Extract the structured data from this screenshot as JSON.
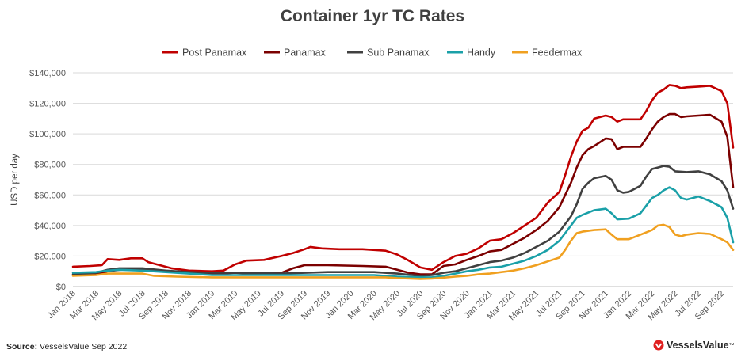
{
  "source": {
    "prefix": "Source:",
    "text": "VesselsValue Sep 2022"
  },
  "brand": {
    "name": "VesselsValue",
    "tm": "™",
    "logo_icon": "vesselsvalue-logo-icon",
    "color": "#e02020"
  },
  "chart_data": {
    "type": "line",
    "title": "Container 1yr TC Rates",
    "xlabel": "",
    "ylabel": "USD per day",
    "ylim": [
      0,
      140000
    ],
    "y_ticks": [
      0,
      20000,
      40000,
      60000,
      80000,
      100000,
      120000,
      140000
    ],
    "y_tick_labels": [
      "$0",
      "$20,000",
      "$40,000",
      "$60,000",
      "$80,000",
      "$100,000",
      "$120,000",
      "$140,000"
    ],
    "x_tick_labels": [
      "Jan 2018",
      "Mar 2018",
      "May 2018",
      "Jul 2018",
      "Sep 2018",
      "Nov 2018",
      "Jan 2019",
      "Mar 2019",
      "May 2019",
      "Jul 2019",
      "Sep 2019",
      "Nov 2019",
      "Jan 2020",
      "Mar 2020",
      "May 2020",
      "Jul 2020",
      "Sep 2020",
      "Nov 2020",
      "Jan 2021",
      "Mar 2021",
      "May 2021",
      "Jul 2021",
      "Sep 2021",
      "Nov 2021",
      "Jan 2022",
      "Mar 2022",
      "May 2022",
      "Jul 2022",
      "Sep 2022"
    ],
    "grid": true,
    "legend_position": "top",
    "x_range_months": [
      0,
      57
    ],
    "series": [
      {
        "name": "Post Panamax",
        "color": "#c00000",
        "points": [
          [
            0,
            13000
          ],
          [
            1.5,
            13500
          ],
          [
            2.5,
            14000
          ],
          [
            3,
            18000
          ],
          [
            4,
            17500
          ],
          [
            5,
            18500
          ],
          [
            6,
            18500
          ],
          [
            6.5,
            16000
          ],
          [
            7.5,
            14000
          ],
          [
            8.5,
            12000
          ],
          [
            10,
            10500
          ],
          [
            12,
            10000
          ],
          [
            13,
            10500
          ],
          [
            14,
            14500
          ],
          [
            15,
            17000
          ],
          [
            16.5,
            17500
          ],
          [
            18,
            20000
          ],
          [
            19,
            22000
          ],
          [
            20,
            24500
          ],
          [
            20.5,
            26000
          ],
          [
            21.5,
            25000
          ],
          [
            23,
            24500
          ],
          [
            25,
            24500
          ],
          [
            27,
            23500
          ],
          [
            28,
            21000
          ],
          [
            29,
            17000
          ],
          [
            30,
            12500
          ],
          [
            31,
            11000
          ],
          [
            32,
            16000
          ],
          [
            33,
            20000
          ],
          [
            34,
            21500
          ],
          [
            35,
            25000
          ],
          [
            36,
            30000
          ],
          [
            37,
            31000
          ],
          [
            38,
            35000
          ],
          [
            39,
            40000
          ],
          [
            40,
            45000
          ],
          [
            41,
            55000
          ],
          [
            42,
            62000
          ],
          [
            42.5,
            73000
          ],
          [
            43,
            85000
          ],
          [
            43.5,
            95000
          ],
          [
            44,
            102000
          ],
          [
            44.5,
            104000
          ],
          [
            45,
            110000
          ],
          [
            46,
            112000
          ],
          [
            46.5,
            111000
          ],
          [
            47,
            108000
          ],
          [
            47.5,
            109500
          ],
          [
            49,
            109500
          ],
          [
            49.5,
            115000
          ],
          [
            50,
            122000
          ],
          [
            50.5,
            127000
          ],
          [
            51,
            129000
          ],
          [
            51.5,
            132000
          ],
          [
            52,
            131500
          ],
          [
            52.5,
            130000
          ],
          [
            53,
            130500
          ],
          [
            54,
            131000
          ],
          [
            55,
            131500
          ],
          [
            56,
            128000
          ],
          [
            56.5,
            120000
          ],
          [
            57,
            91000
          ]
        ]
      },
      {
        "name": "Panamax",
        "color": "#7b0000",
        "points": [
          [
            0,
            7500
          ],
          [
            2,
            8000
          ],
          [
            3,
            10000
          ],
          [
            4,
            11000
          ],
          [
            6,
            11500
          ],
          [
            7,
            10500
          ],
          [
            9,
            9500
          ],
          [
            10,
            9000
          ],
          [
            12,
            8500
          ],
          [
            13,
            8500
          ],
          [
            14,
            9000
          ],
          [
            15,
            8500
          ],
          [
            18,
            9000
          ],
          [
            19,
            12000
          ],
          [
            20,
            14000
          ],
          [
            22,
            14000
          ],
          [
            25,
            13500
          ],
          [
            27,
            13000
          ],
          [
            28,
            11000
          ],
          [
            29,
            9000
          ],
          [
            30,
            8000
          ],
          [
            31,
            8000
          ],
          [
            32,
            13500
          ],
          [
            33,
            14500
          ],
          [
            34,
            17500
          ],
          [
            35,
            20000
          ],
          [
            36,
            23000
          ],
          [
            37,
            24000
          ],
          [
            38,
            28000
          ],
          [
            39,
            32000
          ],
          [
            40,
            37000
          ],
          [
            41,
            43000
          ],
          [
            42,
            52000
          ],
          [
            42.5,
            60000
          ],
          [
            43,
            68000
          ],
          [
            43.5,
            78000
          ],
          [
            44,
            86000
          ],
          [
            44.5,
            90000
          ],
          [
            45,
            92000
          ],
          [
            46,
            97000
          ],
          [
            46.5,
            96500
          ],
          [
            47,
            90000
          ],
          [
            47.5,
            91500
          ],
          [
            49,
            91500
          ],
          [
            49.5,
            97000
          ],
          [
            50,
            103000
          ],
          [
            50.5,
            108000
          ],
          [
            51,
            111000
          ],
          [
            51.5,
            113000
          ],
          [
            52,
            113000
          ],
          [
            52.5,
            111000
          ],
          [
            53,
            111500
          ],
          [
            54,
            112000
          ],
          [
            55,
            112500
          ],
          [
            56,
            108000
          ],
          [
            56.5,
            98000
          ],
          [
            57,
            65000
          ]
        ]
      },
      {
        "name": "Sub Panamax",
        "color": "#404040",
        "points": [
          [
            0,
            8000
          ],
          [
            2,
            9000
          ],
          [
            3,
            11000
          ],
          [
            4,
            12000
          ],
          [
            6,
            12000
          ],
          [
            8,
            10500
          ],
          [
            10,
            9500
          ],
          [
            12,
            9000
          ],
          [
            14,
            9000
          ],
          [
            18,
            8500
          ],
          [
            22,
            9500
          ],
          [
            26,
            9500
          ],
          [
            28,
            8500
          ],
          [
            30,
            7000
          ],
          [
            31,
            7500
          ],
          [
            32,
            9000
          ],
          [
            33,
            10000
          ],
          [
            34,
            12000
          ],
          [
            35,
            14000
          ],
          [
            36,
            16000
          ],
          [
            37,
            17000
          ],
          [
            38,
            19000
          ],
          [
            39,
            22000
          ],
          [
            40,
            26000
          ],
          [
            41,
            30000
          ],
          [
            42,
            36000
          ],
          [
            43,
            46000
          ],
          [
            43.5,
            54000
          ],
          [
            44,
            64000
          ],
          [
            44.5,
            68000
          ],
          [
            45,
            71000
          ],
          [
            46,
            72500
          ],
          [
            46.5,
            70000
          ],
          [
            47,
            63000
          ],
          [
            47.5,
            61500
          ],
          [
            48,
            62000
          ],
          [
            49,
            66000
          ],
          [
            49.5,
            72000
          ],
          [
            50,
            77000
          ],
          [
            50.5,
            78000
          ],
          [
            51,
            79000
          ],
          [
            51.5,
            78500
          ],
          [
            52,
            75500
          ],
          [
            53,
            75000
          ],
          [
            54,
            75500
          ],
          [
            55,
            73500
          ],
          [
            56,
            69000
          ],
          [
            56.5,
            63000
          ],
          [
            57,
            51000
          ]
        ]
      },
      {
        "name": "Handy",
        "color": "#1aa0a8",
        "points": [
          [
            0,
            9000
          ],
          [
            2,
            9500
          ],
          [
            3,
            10500
          ],
          [
            4,
            11000
          ],
          [
            6,
            10500
          ],
          [
            8,
            9500
          ],
          [
            10,
            8500
          ],
          [
            12,
            7500
          ],
          [
            14,
            7500
          ],
          [
            18,
            7500
          ],
          [
            22,
            7500
          ],
          [
            26,
            7500
          ],
          [
            28,
            6500
          ],
          [
            30,
            6000
          ],
          [
            31,
            6000
          ],
          [
            32,
            7000
          ],
          [
            33,
            8500
          ],
          [
            34,
            10000
          ],
          [
            35,
            11000
          ],
          [
            36,
            12500
          ],
          [
            37,
            13000
          ],
          [
            38,
            15000
          ],
          [
            39,
            17000
          ],
          [
            40,
            20000
          ],
          [
            41,
            24000
          ],
          [
            42,
            30000
          ],
          [
            42.5,
            35000
          ],
          [
            43,
            40000
          ],
          [
            43.5,
            45000
          ],
          [
            44,
            47000
          ],
          [
            45,
            50000
          ],
          [
            46,
            51000
          ],
          [
            46.5,
            48000
          ],
          [
            47,
            44000
          ],
          [
            48,
            44500
          ],
          [
            49,
            48000
          ],
          [
            49.5,
            53000
          ],
          [
            50,
            58000
          ],
          [
            50.5,
            60000
          ],
          [
            51,
            63000
          ],
          [
            51.5,
            65000
          ],
          [
            52,
            63000
          ],
          [
            52.5,
            58000
          ],
          [
            53,
            57000
          ],
          [
            54,
            59000
          ],
          [
            55,
            56000
          ],
          [
            56,
            52000
          ],
          [
            56.5,
            45000
          ],
          [
            57,
            29000
          ]
        ]
      },
      {
        "name": "Feedermax",
        "color": "#f0a020",
        "points": [
          [
            0,
            7000
          ],
          [
            2,
            7500
          ],
          [
            3,
            8500
          ],
          [
            6,
            8500
          ],
          [
            7,
            7000
          ],
          [
            9,
            6500
          ],
          [
            12,
            6000
          ],
          [
            16,
            6000
          ],
          [
            20,
            6000
          ],
          [
            24,
            6000
          ],
          [
            27,
            6000
          ],
          [
            28,
            5500
          ],
          [
            30,
            5000
          ],
          [
            31,
            5200
          ],
          [
            32,
            5800
          ],
          [
            33,
            6500
          ],
          [
            34,
            7000
          ],
          [
            35,
            8000
          ],
          [
            36,
            8500
          ],
          [
            37,
            9500
          ],
          [
            38,
            10500
          ],
          [
            39,
            12000
          ],
          [
            40,
            14000
          ],
          [
            41,
            16500
          ],
          [
            42,
            19000
          ],
          [
            42.5,
            24000
          ],
          [
            43,
            30000
          ],
          [
            43.5,
            35000
          ],
          [
            44,
            36000
          ],
          [
            45,
            37000
          ],
          [
            46,
            37500
          ],
          [
            46.5,
            34000
          ],
          [
            47,
            31000
          ],
          [
            48,
            31000
          ],
          [
            49,
            34000
          ],
          [
            50,
            37000
          ],
          [
            50.5,
            40000
          ],
          [
            51,
            40500
          ],
          [
            51.5,
            39000
          ],
          [
            52,
            34000
          ],
          [
            52.5,
            33000
          ],
          [
            53,
            34000
          ],
          [
            54,
            35000
          ],
          [
            55,
            34500
          ],
          [
            56,
            31000
          ],
          [
            56.5,
            29000
          ],
          [
            57,
            24000
          ]
        ]
      }
    ]
  }
}
